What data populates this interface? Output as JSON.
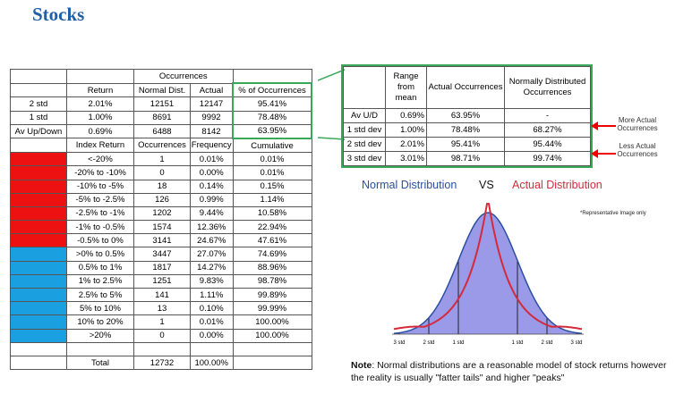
{
  "title": "Stocks",
  "main_table": {
    "occ_header": "Occurrences",
    "header1": [
      "",
      "Return",
      "Normal Dist.",
      "Actual",
      "% of Occurrences"
    ],
    "std_rows": [
      [
        "2 std",
        "2.01%",
        "12151",
        "12147",
        "95.41%"
      ],
      [
        "1 std",
        "1.00%",
        "8691",
        "9992",
        "78.48%"
      ],
      [
        "Av Up/Down",
        "0.69%",
        "6488",
        "8142",
        "63.95%"
      ]
    ],
    "header2": [
      "",
      "Index Return",
      "Occurrences",
      "Frequency",
      "Cumulative"
    ],
    "rows": [
      [
        "",
        "<-20%",
        "1",
        "0.01%",
        "0.01%"
      ],
      [
        "",
        "-20% to -10%",
        "0",
        "0.00%",
        "0.01%"
      ],
      [
        "",
        "-10% to -5%",
        "18",
        "0.14%",
        "0.15%"
      ],
      [
        "",
        "-5% to -2.5%",
        "126",
        "0.99%",
        "1.14%"
      ],
      [
        "",
        "-2.5% to -1%",
        "1202",
        "9.44%",
        "10.58%"
      ],
      [
        "",
        "-1% to -0.5%",
        "1574",
        "12.36%",
        "22.94%"
      ],
      [
        "",
        "-0.5% to 0%",
        "3141",
        "24.67%",
        "47.61%"
      ],
      [
        "",
        ">0% to 0.5%",
        "3447",
        "27.07%",
        "74.69%"
      ],
      [
        "",
        "0.5% to 1%",
        "1817",
        "14.27%",
        "88.96%"
      ],
      [
        "",
        "1% to 2.5%",
        "1251",
        "9.83%",
        "98.78%"
      ],
      [
        "",
        "2.5% to 5%",
        "141",
        "1.11%",
        "99.89%"
      ],
      [
        "",
        "5% to 10%",
        "13",
        "0.10%",
        "99.99%"
      ],
      [
        "",
        "10% to 20%",
        "1",
        "0.01%",
        "100.00%"
      ],
      [
        "",
        ">20%",
        "0",
        "0.00%",
        "100.00%"
      ]
    ],
    "total": [
      "",
      "Total",
      "12732",
      "100.00%",
      ""
    ]
  },
  "summary_table": {
    "header": [
      "",
      "Range from mean",
      "Actual Occurrences",
      "Normally Distributed Occurrences"
    ],
    "rows": [
      [
        "Av U/D",
        "0.69%",
        "63.95%",
        "-"
      ],
      [
        "1 std dev",
        "1.00%",
        "78.48%",
        "68.27%"
      ],
      [
        "2 std dev",
        "2.01%",
        "95.41%",
        "95.44%"
      ],
      [
        "3 std dev",
        "3.01%",
        "98.71%",
        "99.74%"
      ]
    ]
  },
  "callouts": {
    "more": "More Actual Occurrences",
    "less": "Less Actual Occurrences"
  },
  "distribution": {
    "normal_label": "Normal Distribution",
    "vs_label": "VS",
    "actual_label": "Actual Distribution",
    "representative": "*Representative Image only",
    "axis_labels": [
      "3 std",
      "2 std",
      "1 std",
      "1 std",
      "2 std",
      "3 std"
    ],
    "colors": {
      "normal": "#2b4fa0",
      "actual": "#d42a3c",
      "fill": "#9a9ae8"
    }
  },
  "note": {
    "bold": "Note",
    "text": ": Normal distributions are a reasonable model of stock returns however the reality is usually \"fatter tails\" and higher \"peaks\""
  },
  "colors": {
    "negative": "#ee1111",
    "positive": "#1aa0e0",
    "title": "#1f5fa8",
    "highlight": "#3aa75a"
  }
}
